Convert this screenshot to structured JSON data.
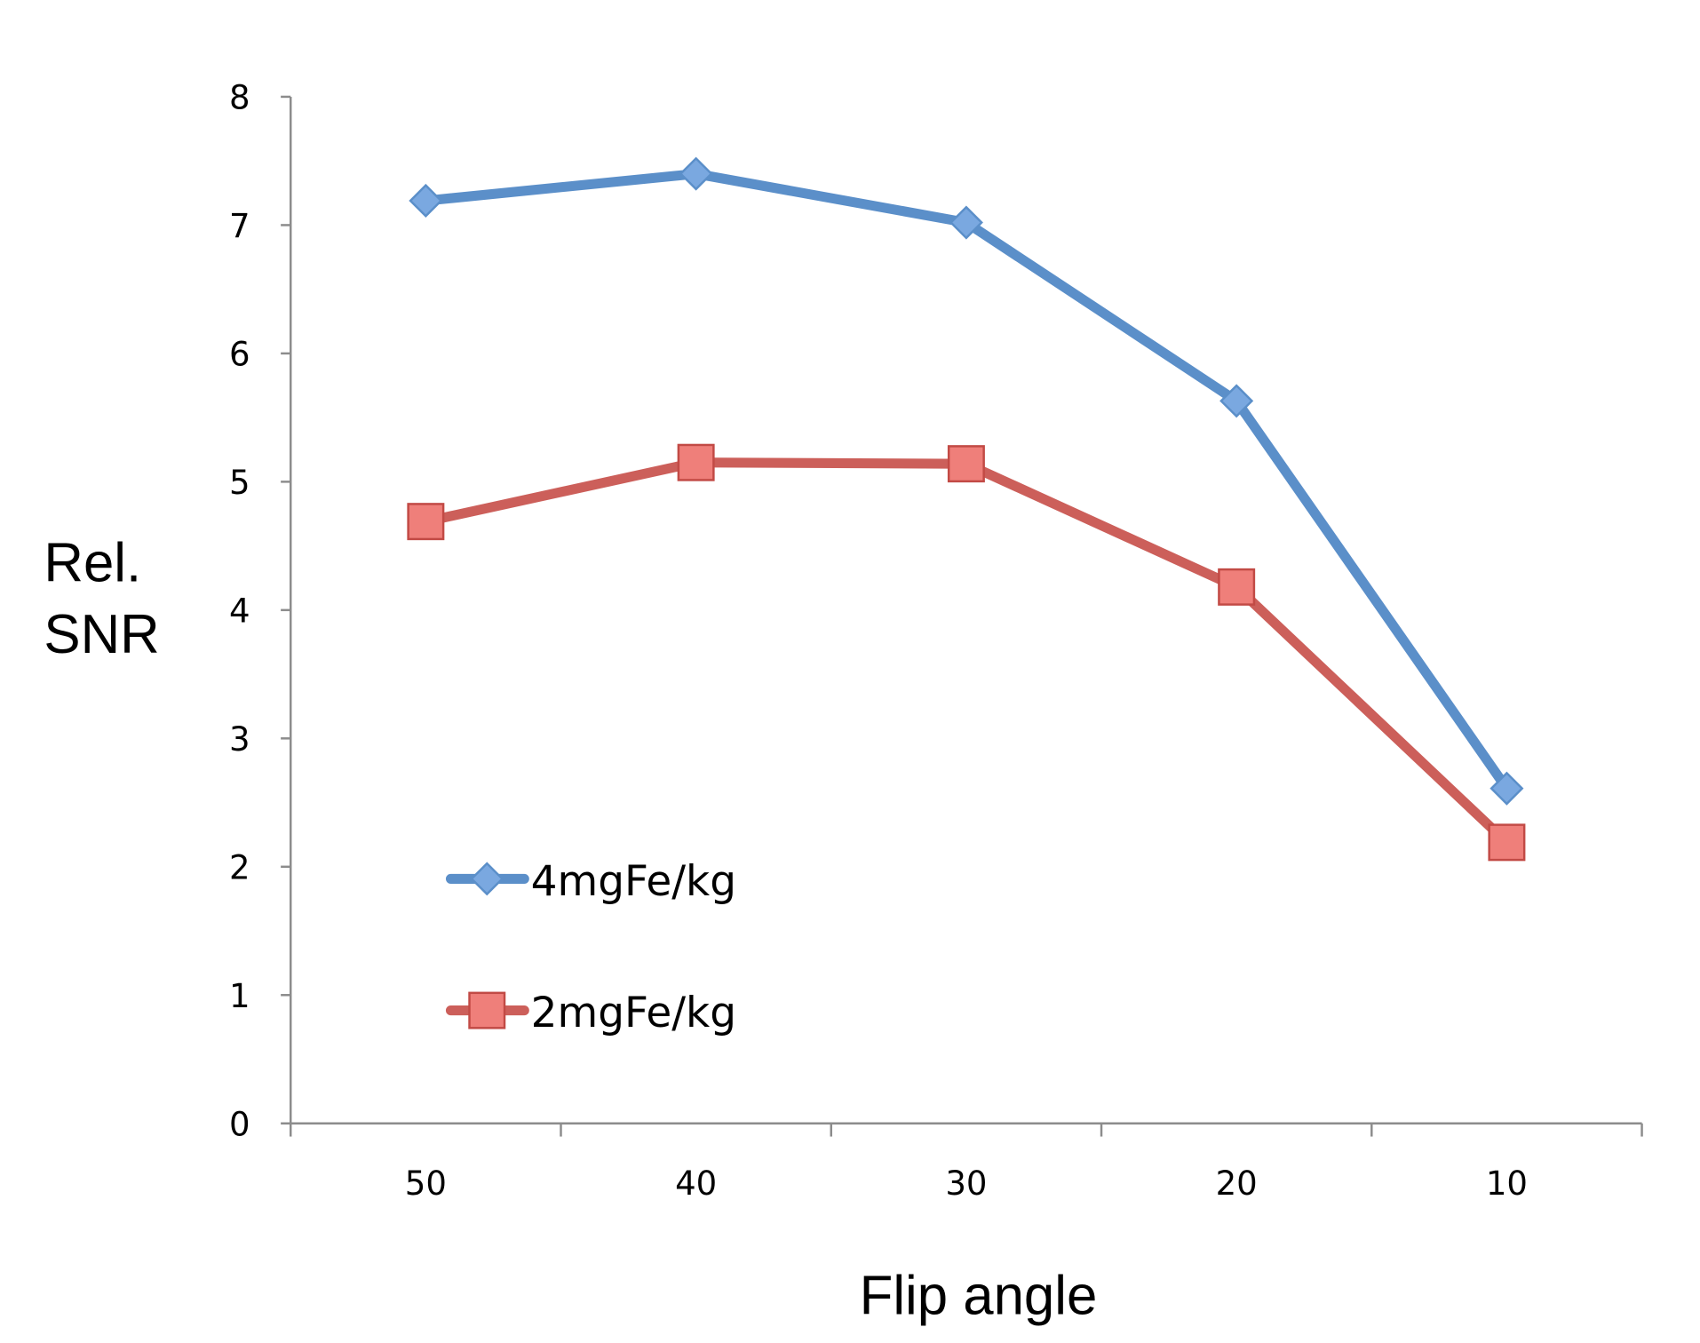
{
  "chart_data": {
    "type": "line",
    "title": "",
    "xlabel": "Flip angle",
    "ylabel_lines": [
      "Rel.",
      "SNR"
    ],
    "categories": [
      "50",
      "40",
      "30",
      "20",
      "10"
    ],
    "ylim": [
      0,
      8
    ],
    "yticks": [
      "0",
      "1",
      "2",
      "3",
      "4",
      "5",
      "6",
      "7",
      "8"
    ],
    "grid": false,
    "legend_position": "bottom-left (inside plot)",
    "series": [
      {
        "name": "4mgFe/kg",
        "marker": "diamond",
        "color": "#5b8fc9",
        "values": [
          7.19,
          7.4,
          7.02,
          5.63,
          2.61
        ]
      },
      {
        "name": "2mgFe/kg",
        "marker": "square",
        "color": "#cc5f5a",
        "values": [
          4.69,
          5.15,
          5.14,
          4.18,
          2.19
        ]
      }
    ]
  }
}
